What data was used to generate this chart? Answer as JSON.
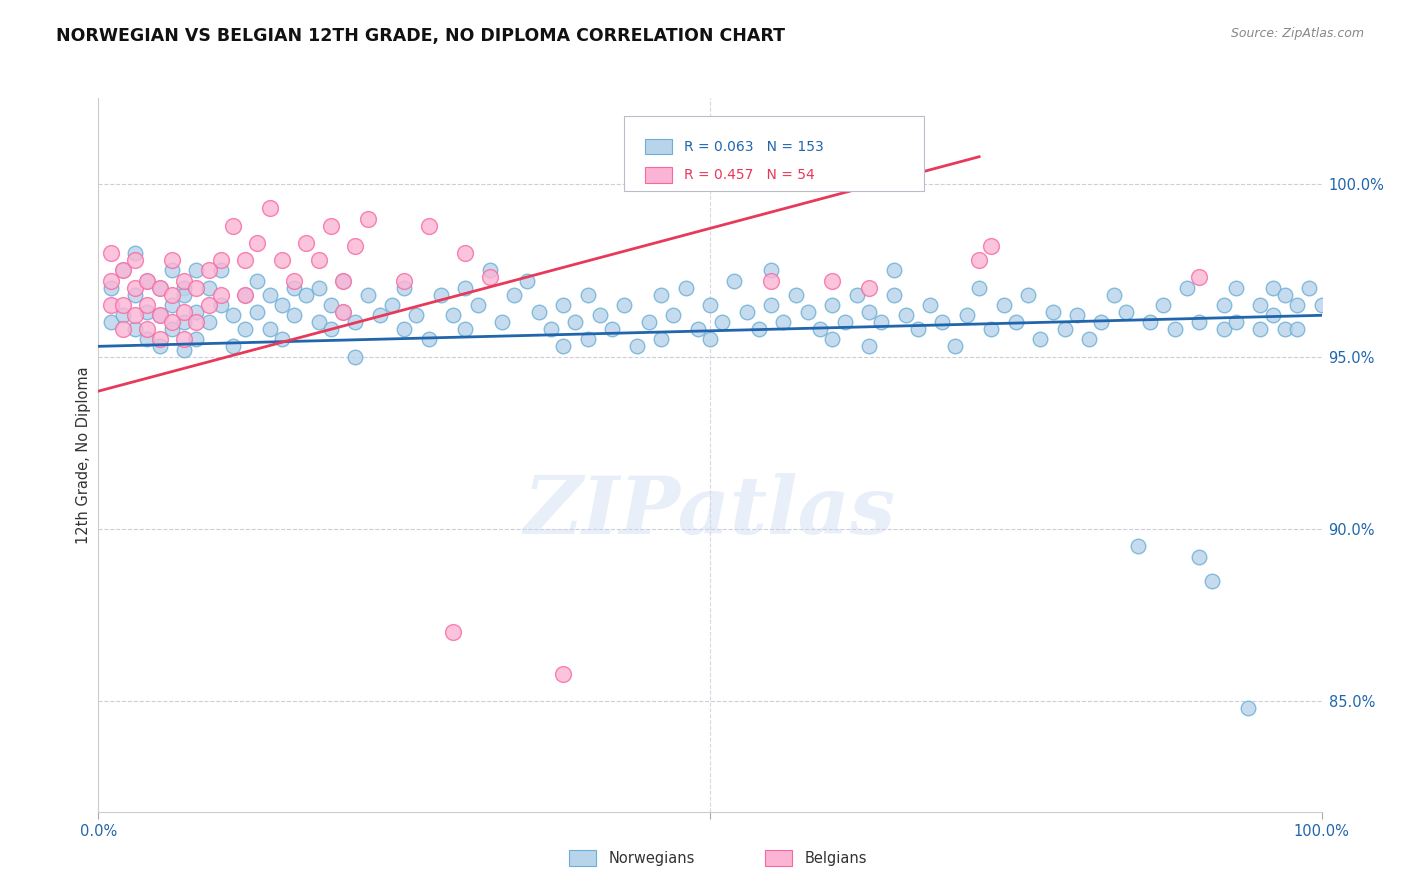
{
  "title": "NORWEGIAN VS BELGIAN 12TH GRADE, NO DIPLOMA CORRELATION CHART",
  "source": "Source: ZipAtlas.com",
  "ylabel": "12th Grade, No Diploma",
  "ytick_labels": [
    "100.0%",
    "95.0%",
    "90.0%",
    "85.0%"
  ],
  "ytick_values": [
    1.0,
    0.95,
    0.9,
    0.85
  ],
  "xmin": 0.0,
  "xmax": 1.0,
  "ymin": 0.818,
  "ymax": 1.025,
  "blue_line": {
    "x0": 0.0,
    "y0": 0.953,
    "x1": 1.0,
    "y1": 0.962
  },
  "pink_line": {
    "x0": 0.0,
    "y0": 0.94,
    "x1": 0.72,
    "y1": 1.008
  },
  "norwegian_dots": [
    [
      0.01,
      0.97
    ],
    [
      0.01,
      0.96
    ],
    [
      0.02,
      0.975
    ],
    [
      0.02,
      0.962
    ],
    [
      0.03,
      0.968
    ],
    [
      0.03,
      0.958
    ],
    [
      0.03,
      0.98
    ],
    [
      0.04,
      0.972
    ],
    [
      0.04,
      0.963
    ],
    [
      0.04,
      0.955
    ],
    [
      0.05,
      0.97
    ],
    [
      0.05,
      0.962
    ],
    [
      0.05,
      0.953
    ],
    [
      0.06,
      0.975
    ],
    [
      0.06,
      0.965
    ],
    [
      0.06,
      0.958
    ],
    [
      0.07,
      0.97
    ],
    [
      0.07,
      0.96
    ],
    [
      0.07,
      0.952
    ],
    [
      0.07,
      0.968
    ],
    [
      0.08,
      0.975
    ],
    [
      0.08,
      0.963
    ],
    [
      0.08,
      0.955
    ],
    [
      0.09,
      0.97
    ],
    [
      0.09,
      0.96
    ],
    [
      0.1,
      0.965
    ],
    [
      0.1,
      0.975
    ],
    [
      0.11,
      0.962
    ],
    [
      0.11,
      0.953
    ],
    [
      0.12,
      0.968
    ],
    [
      0.12,
      0.958
    ],
    [
      0.13,
      0.972
    ],
    [
      0.13,
      0.963
    ],
    [
      0.14,
      0.968
    ],
    [
      0.14,
      0.958
    ],
    [
      0.15,
      0.965
    ],
    [
      0.15,
      0.955
    ],
    [
      0.16,
      0.962
    ],
    [
      0.16,
      0.97
    ],
    [
      0.17,
      0.968
    ],
    [
      0.18,
      0.96
    ],
    [
      0.18,
      0.97
    ],
    [
      0.19,
      0.965
    ],
    [
      0.19,
      0.958
    ],
    [
      0.2,
      0.972
    ],
    [
      0.2,
      0.963
    ],
    [
      0.21,
      0.96
    ],
    [
      0.21,
      0.95
    ],
    [
      0.22,
      0.968
    ],
    [
      0.23,
      0.962
    ],
    [
      0.24,
      0.965
    ],
    [
      0.25,
      0.958
    ],
    [
      0.25,
      0.97
    ],
    [
      0.26,
      0.962
    ],
    [
      0.27,
      0.955
    ],
    [
      0.28,
      0.968
    ],
    [
      0.29,
      0.962
    ],
    [
      0.3,
      0.97
    ],
    [
      0.3,
      0.958
    ],
    [
      0.31,
      0.965
    ],
    [
      0.32,
      0.975
    ],
    [
      0.33,
      0.96
    ],
    [
      0.34,
      0.968
    ],
    [
      0.35,
      0.972
    ],
    [
      0.36,
      0.963
    ],
    [
      0.37,
      0.958
    ],
    [
      0.38,
      0.965
    ],
    [
      0.38,
      0.953
    ],
    [
      0.39,
      0.96
    ],
    [
      0.4,
      0.968
    ],
    [
      0.4,
      0.955
    ],
    [
      0.41,
      0.962
    ],
    [
      0.42,
      0.958
    ],
    [
      0.43,
      0.965
    ],
    [
      0.44,
      0.953
    ],
    [
      0.45,
      0.96
    ],
    [
      0.46,
      0.955
    ],
    [
      0.46,
      0.968
    ],
    [
      0.47,
      0.962
    ],
    [
      0.48,
      0.97
    ],
    [
      0.49,
      0.958
    ],
    [
      0.5,
      0.965
    ],
    [
      0.5,
      0.955
    ],
    [
      0.51,
      0.96
    ],
    [
      0.52,
      0.972
    ],
    [
      0.53,
      0.963
    ],
    [
      0.54,
      0.958
    ],
    [
      0.55,
      0.965
    ],
    [
      0.55,
      0.975
    ],
    [
      0.56,
      0.96
    ],
    [
      0.57,
      0.968
    ],
    [
      0.58,
      0.963
    ],
    [
      0.59,
      0.958
    ],
    [
      0.6,
      0.965
    ],
    [
      0.6,
      0.955
    ],
    [
      0.61,
      0.96
    ],
    [
      0.62,
      0.968
    ],
    [
      0.63,
      0.953
    ],
    [
      0.63,
      0.963
    ],
    [
      0.64,
      0.96
    ],
    [
      0.65,
      0.968
    ],
    [
      0.65,
      0.975
    ],
    [
      0.66,
      0.962
    ],
    [
      0.67,
      0.958
    ],
    [
      0.68,
      0.965
    ],
    [
      0.69,
      0.96
    ],
    [
      0.7,
      0.953
    ],
    [
      0.71,
      0.962
    ],
    [
      0.72,
      0.97
    ],
    [
      0.73,
      0.958
    ],
    [
      0.74,
      0.965
    ],
    [
      0.75,
      0.96
    ],
    [
      0.76,
      0.968
    ],
    [
      0.77,
      0.955
    ],
    [
      0.78,
      0.963
    ],
    [
      0.79,
      0.958
    ],
    [
      0.8,
      0.962
    ],
    [
      0.81,
      0.955
    ],
    [
      0.82,
      0.96
    ],
    [
      0.83,
      0.968
    ],
    [
      0.84,
      0.963
    ],
    [
      0.85,
      0.895
    ],
    [
      0.86,
      0.96
    ],
    [
      0.87,
      0.965
    ],
    [
      0.88,
      0.958
    ],
    [
      0.89,
      0.97
    ],
    [
      0.9,
      0.892
    ],
    [
      0.9,
      0.96
    ],
    [
      0.91,
      0.885
    ],
    [
      0.92,
      0.965
    ],
    [
      0.92,
      0.958
    ],
    [
      0.93,
      0.96
    ],
    [
      0.93,
      0.97
    ],
    [
      0.94,
      0.848
    ],
    [
      0.95,
      0.965
    ],
    [
      0.95,
      0.958
    ],
    [
      0.96,
      0.97
    ],
    [
      0.96,
      0.962
    ],
    [
      0.97,
      0.968
    ],
    [
      0.97,
      0.958
    ],
    [
      0.98,
      0.965
    ],
    [
      0.98,
      0.958
    ],
    [
      0.99,
      0.97
    ],
    [
      1.0,
      0.965
    ]
  ],
  "belgian_dots": [
    [
      0.01,
      0.98
    ],
    [
      0.01,
      0.972
    ],
    [
      0.01,
      0.965
    ],
    [
      0.02,
      0.975
    ],
    [
      0.02,
      0.965
    ],
    [
      0.02,
      0.958
    ],
    [
      0.03,
      0.97
    ],
    [
      0.03,
      0.962
    ],
    [
      0.03,
      0.978
    ],
    [
      0.04,
      0.965
    ],
    [
      0.04,
      0.958
    ],
    [
      0.04,
      0.972
    ],
    [
      0.05,
      0.962
    ],
    [
      0.05,
      0.955
    ],
    [
      0.05,
      0.97
    ],
    [
      0.06,
      0.978
    ],
    [
      0.06,
      0.968
    ],
    [
      0.06,
      0.96
    ],
    [
      0.07,
      0.972
    ],
    [
      0.07,
      0.963
    ],
    [
      0.07,
      0.955
    ],
    [
      0.08,
      0.97
    ],
    [
      0.08,
      0.96
    ],
    [
      0.09,
      0.965
    ],
    [
      0.09,
      0.975
    ],
    [
      0.1,
      0.978
    ],
    [
      0.1,
      0.968
    ],
    [
      0.11,
      0.988
    ],
    [
      0.12,
      0.978
    ],
    [
      0.12,
      0.968
    ],
    [
      0.13,
      0.983
    ],
    [
      0.14,
      0.993
    ],
    [
      0.15,
      0.978
    ],
    [
      0.16,
      0.972
    ],
    [
      0.17,
      0.983
    ],
    [
      0.18,
      0.978
    ],
    [
      0.19,
      0.988
    ],
    [
      0.2,
      0.963
    ],
    [
      0.2,
      0.972
    ],
    [
      0.21,
      0.982
    ],
    [
      0.22,
      0.99
    ],
    [
      0.25,
      0.972
    ],
    [
      0.27,
      0.988
    ],
    [
      0.29,
      0.87
    ],
    [
      0.3,
      0.98
    ],
    [
      0.32,
      0.973
    ],
    [
      0.38,
      0.858
    ],
    [
      0.55,
      0.972
    ],
    [
      0.6,
      0.972
    ],
    [
      0.63,
      0.97
    ],
    [
      0.72,
      0.978
    ],
    [
      0.73,
      0.982
    ],
    [
      0.9,
      0.973
    ]
  ],
  "dot_size_norwegian": 110,
  "dot_size_belgian": 130,
  "blue_color": "#6baed6",
  "blue_fill": "#b8d4ea",
  "pink_color": "#f768a1",
  "pink_fill": "#fbb4d4",
  "blue_line_color": "#2166ac",
  "pink_line_color": "#e8395a",
  "legend_blue_text_color": "#2166ac",
  "legend_pink_text_color": "#e8395a",
  "watermark": "ZIPatlas",
  "background_color": "#ffffff",
  "grid_color": "#c8c8d8",
  "axis_color": "#cccccc"
}
